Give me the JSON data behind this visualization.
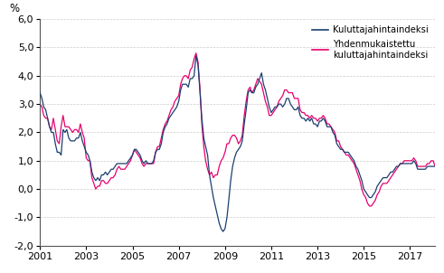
{
  "title": "",
  "ylabel": "%",
  "line1_label": "Kuluttajahintaindeksi",
  "line2_label": "Yhdenmukaistettu\nkuluttajahintaindeksi",
  "line1_color": "#1a3f6f",
  "line2_color": "#e8006f",
  "ylim": [
    -2.0,
    6.0
  ],
  "yticks": [
    -2.0,
    -1.0,
    0.0,
    1.0,
    2.0,
    3.0,
    4.0,
    5.0,
    6.0
  ],
  "background_color": "#ffffff",
  "grid_color": "#cccccc",
  "xtick_years": [
    2001,
    2003,
    2005,
    2007,
    2009,
    2011,
    2013,
    2015,
    2017
  ],
  "khi": [
    3.4,
    3.2,
    2.9,
    2.8,
    2.5,
    2.2,
    2.0,
    2.0,
    1.6,
    1.3,
    1.3,
    1.2,
    2.1,
    2.0,
    2.1,
    1.8,
    1.7,
    1.7,
    1.7,
    1.8,
    1.8,
    2.0,
    1.7,
    1.5,
    1.3,
    1.2,
    1.0,
    0.6,
    0.4,
    0.3,
    0.4,
    0.3,
    0.5,
    0.5,
    0.6,
    0.5,
    0.6,
    0.7,
    0.7,
    0.8,
    0.9,
    0.9,
    0.9,
    0.9,
    0.9,
    0.9,
    1.0,
    1.1,
    1.2,
    1.4,
    1.4,
    1.3,
    1.2,
    1.0,
    0.9,
    1.0,
    0.9,
    0.9,
    0.9,
    1.0,
    1.3,
    1.4,
    1.4,
    1.6,
    2.0,
    2.2,
    2.3,
    2.5,
    2.6,
    2.7,
    2.8,
    2.9,
    3.1,
    3.5,
    3.7,
    3.7,
    3.7,
    3.6,
    3.9,
    3.9,
    4.0,
    4.7,
    4.4,
    3.5,
    2.5,
    1.8,
    1.5,
    1.2,
    0.5,
    0.1,
    -0.3,
    -0.6,
    -0.9,
    -1.2,
    -1.4,
    -1.5,
    -1.4,
    -1.0,
    -0.4,
    0.3,
    0.8,
    1.1,
    1.3,
    1.4,
    1.5,
    1.7,
    2.3,
    2.8,
    3.4,
    3.5,
    3.4,
    3.4,
    3.6,
    3.7,
    3.9,
    4.1,
    3.7,
    3.5,
    3.2,
    2.9,
    2.7,
    2.8,
    2.9,
    2.9,
    3.0,
    3.0,
    2.9,
    3.0,
    3.2,
    3.2,
    3.0,
    2.9,
    2.8,
    2.8,
    2.9,
    2.6,
    2.5,
    2.5,
    2.4,
    2.5,
    2.4,
    2.5,
    2.3,
    2.3,
    2.2,
    2.4,
    2.4,
    2.5,
    2.4,
    2.2,
    2.2,
    2.2,
    2.0,
    1.9,
    1.6,
    1.5,
    1.4,
    1.4,
    1.3,
    1.3,
    1.3,
    1.2,
    1.1,
    1.0,
    0.8,
    0.7,
    0.5,
    0.3,
    0.0,
    -0.1,
    -0.2,
    -0.3,
    -0.3,
    -0.2,
    -0.1,
    0.1,
    0.2,
    0.3,
    0.4,
    0.4,
    0.4,
    0.5,
    0.6,
    0.6,
    0.7,
    0.8,
    0.8,
    0.9,
    0.9,
    0.9,
    0.9,
    0.9,
    0.9,
    0.9,
    1.0,
    0.9,
    0.7,
    0.7,
    0.7,
    0.7,
    0.7,
    0.8,
    0.8,
    0.8,
    0.8,
    0.8
  ],
  "hicp": [
    3.0,
    2.9,
    2.6,
    2.5,
    2.5,
    2.2,
    2.1,
    2.5,
    2.1,
    1.7,
    1.6,
    2.2,
    2.6,
    2.2,
    2.2,
    2.2,
    2.1,
    2.0,
    2.1,
    2.1,
    2.0,
    2.3,
    2.0,
    1.8,
    1.1,
    1.0,
    1.0,
    0.4,
    0.2,
    0.0,
    0.1,
    0.1,
    0.3,
    0.3,
    0.2,
    0.2,
    0.3,
    0.4,
    0.4,
    0.5,
    0.7,
    0.8,
    0.7,
    0.7,
    0.7,
    0.8,
    0.9,
    1.0,
    1.2,
    1.4,
    1.3,
    1.2,
    1.1,
    0.9,
    0.8,
    0.9,
    0.9,
    0.9,
    0.9,
    0.9,
    1.3,
    1.5,
    1.5,
    1.8,
    2.1,
    2.3,
    2.4,
    2.6,
    2.8,
    2.9,
    3.1,
    3.2,
    3.3,
    3.7,
    3.9,
    4.0,
    4.0,
    3.9,
    4.2,
    4.3,
    4.6,
    4.8,
    4.5,
    3.6,
    2.3,
    1.5,
    1.0,
    0.7,
    0.5,
    0.6,
    0.4,
    0.5,
    0.5,
    0.8,
    1.0,
    1.1,
    1.3,
    1.6,
    1.6,
    1.8,
    1.9,
    1.9,
    1.8,
    1.6,
    1.7,
    1.9,
    2.6,
    3.1,
    3.5,
    3.6,
    3.4,
    3.5,
    3.7,
    3.9,
    3.8,
    3.7,
    3.4,
    3.1,
    2.9,
    2.6,
    2.6,
    2.7,
    2.8,
    2.9,
    3.1,
    3.2,
    3.3,
    3.5,
    3.5,
    3.4,
    3.4,
    3.4,
    3.2,
    3.2,
    3.2,
    2.8,
    2.7,
    2.7,
    2.6,
    2.6,
    2.5,
    2.6,
    2.5,
    2.5,
    2.4,
    2.5,
    2.5,
    2.6,
    2.5,
    2.3,
    2.3,
    2.2,
    2.1,
    2.0,
    1.7,
    1.7,
    1.5,
    1.4,
    1.3,
    1.2,
    1.2,
    1.1,
    1.0,
    0.9,
    0.7,
    0.5,
    0.3,
    0.0,
    -0.2,
    -0.3,
    -0.5,
    -0.6,
    -0.6,
    -0.5,
    -0.4,
    -0.2,
    -0.1,
    0.1,
    0.2,
    0.2,
    0.2,
    0.3,
    0.4,
    0.5,
    0.6,
    0.7,
    0.8,
    0.9,
    0.9,
    1.0,
    1.0,
    1.0,
    1.0,
    1.0,
    1.1,
    1.0,
    0.8,
    0.8,
    0.8,
    0.8,
    0.8,
    0.9,
    0.9,
    1.0,
    1.0,
    0.8
  ]
}
